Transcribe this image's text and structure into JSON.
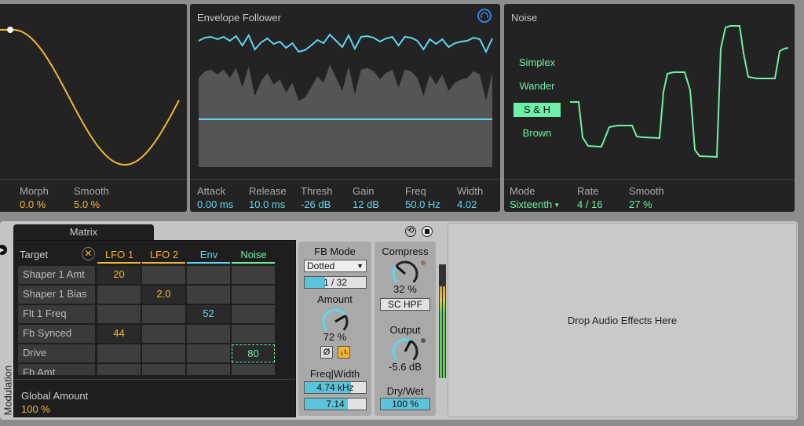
{
  "lfo": {
    "params": [
      {
        "label": "Morph",
        "value": "0.0 %"
      },
      {
        "label": "Smooth",
        "value": "5.0 %"
      }
    ]
  },
  "envelope": {
    "title": "Envelope Follower",
    "icon": "headphones-icon",
    "params": [
      {
        "label": "Attack",
        "value": "0.00 ms"
      },
      {
        "label": "Release",
        "value": "10.0 ms"
      },
      {
        "label": "Thresh",
        "value": "-26 dB"
      },
      {
        "label": "Gain",
        "value": "12 dB"
      },
      {
        "label": "Freq",
        "value": "50.0 Hz"
      },
      {
        "label": "Width",
        "value": "4.02"
      }
    ]
  },
  "noise": {
    "title": "Noise",
    "types": [
      "Simplex",
      "Wander",
      "S & H",
      "Brown"
    ],
    "selected": "S & H",
    "params": [
      {
        "label": "Mode",
        "value": "Sixteenth"
      },
      {
        "label": "Rate",
        "value": "4 / 16"
      },
      {
        "label": "Smooth",
        "value": "27 %"
      }
    ]
  },
  "matrix": {
    "tab": "Matrix",
    "target_label": "Target",
    "sources": [
      "LFO 1",
      "LFO 2",
      "Env",
      "Noise"
    ],
    "rows": [
      {
        "target": "Shaper 1 Amt",
        "values": [
          "20",
          "",
          "",
          ""
        ]
      },
      {
        "target": "Shaper 1 Bias",
        "values": [
          "",
          "2.0",
          "",
          ""
        ]
      },
      {
        "target": "Flt 1 Freq",
        "values": [
          "",
          "",
          "52",
          ""
        ]
      },
      {
        "target": "Fb Synced",
        "values": [
          "44",
          "",
          "",
          ""
        ]
      },
      {
        "target": "Drive",
        "values": [
          "",
          "",
          "",
          "80"
        ]
      },
      {
        "target": "Fb Amt",
        "values": [
          "",
          "",
          "",
          ""
        ]
      }
    ],
    "global_label": "Global Amount",
    "global_value": "100 %",
    "side_label": "Modulation"
  },
  "feedback": {
    "mode_label": "FB Mode",
    "mode_value": "Dotted",
    "time": "1 / 32",
    "time_fill": 0.33,
    "amount_label": "Amount",
    "amount_value": "72 %",
    "amount_level": 0.72,
    "phase_label": "Ø",
    "freq_width_label": "Freq|Width",
    "freq": "4.74 kHz",
    "freq_fill": 0.76,
    "width": "7.14",
    "width_fill": 0.7
  },
  "output": {
    "compress_label": "Compress",
    "compress_value": "32 %",
    "compress_level": 0.32,
    "sc_hpf": "SC HPF",
    "output_label": "Output",
    "output_value": "-5.6 dB",
    "output_level": 0.6,
    "drywet_label": "Dry/Wet",
    "drywet_value": "100 %"
  },
  "drop_text": "Drop Audio Effects Here",
  "colors": {
    "lfo1": "#f5b731",
    "lfo2": "#f5b731",
    "env": "#5fd7ee",
    "noise": "#6ef0a8"
  }
}
